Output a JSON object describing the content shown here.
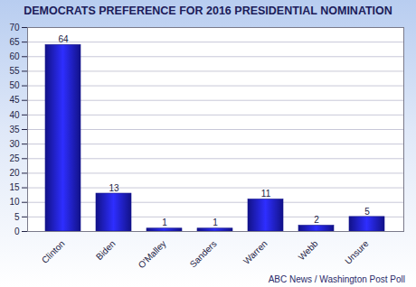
{
  "chart_data": {
    "type": "bar",
    "title": "DEMOCRATS PREFERENCE FOR 2016 PRESIDENTIAL NOMINATION",
    "source": "ABC News / Washington Post Poll",
    "categories": [
      "Clinton",
      "Biden",
      "O'Malley",
      "Sanders",
      "Warren",
      "Webb",
      "Unsure"
    ],
    "values": [
      64,
      13,
      1,
      1,
      11,
      2,
      5
    ],
    "color": "#1c1cd8",
    "ylim": [
      0,
      70
    ],
    "yticks": [
      0,
      5,
      10,
      15,
      20,
      25,
      30,
      35,
      40,
      45,
      50,
      55,
      60,
      65,
      70
    ],
    "grid": true,
    "data_labels": true
  }
}
